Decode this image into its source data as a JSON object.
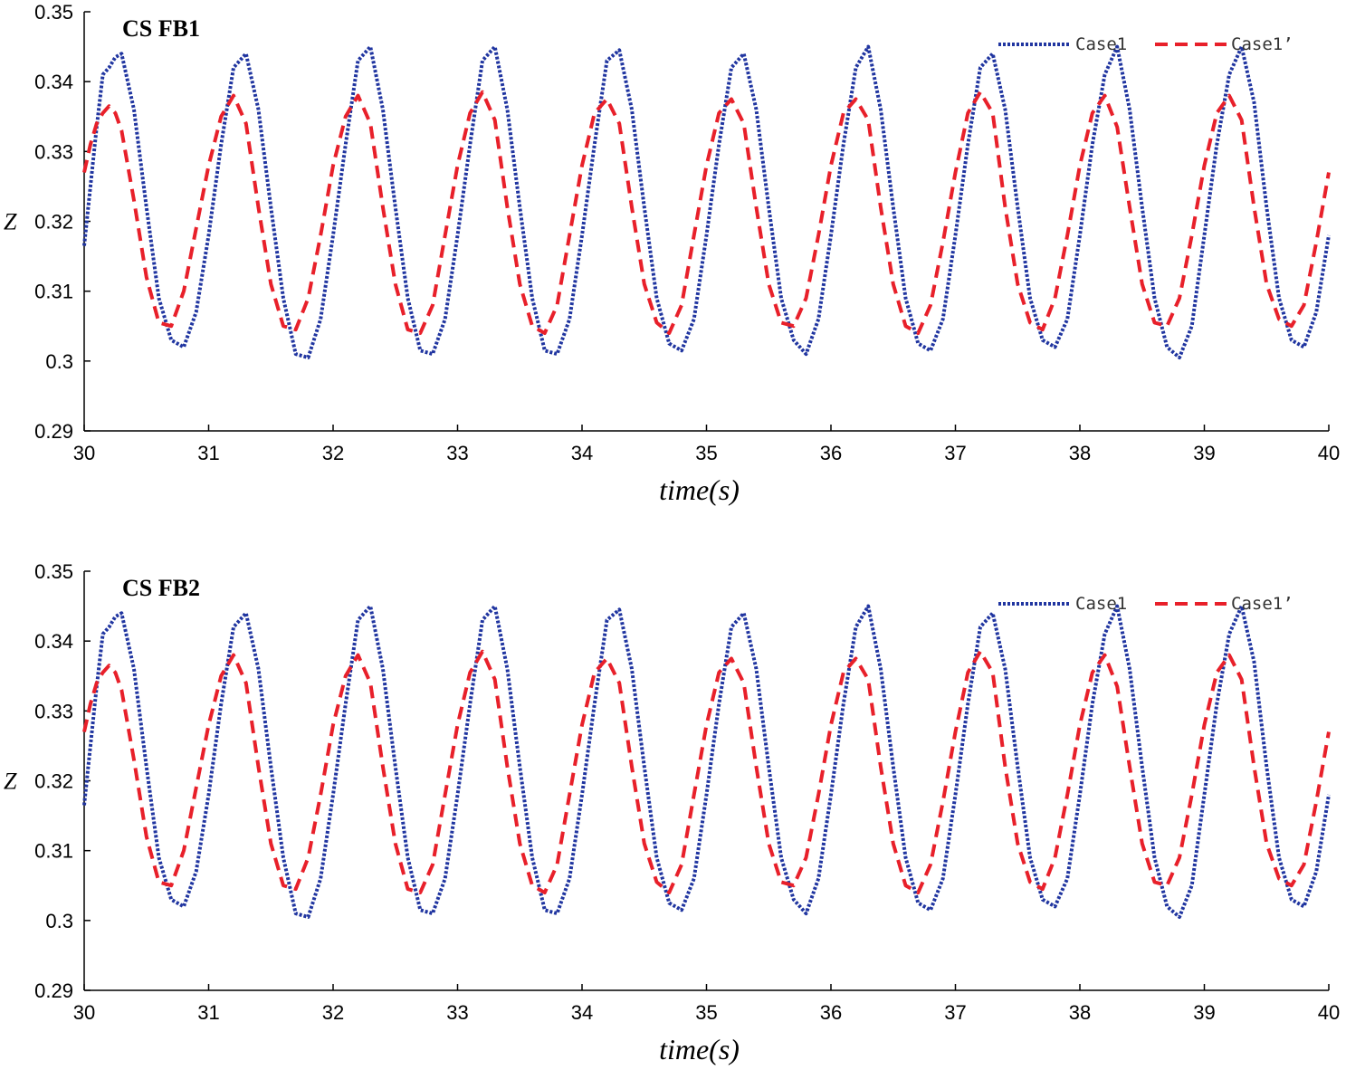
{
  "chart_data": [
    {
      "type": "line",
      "title": "CS FB1",
      "xlabel": "time(s)",
      "ylabel": "Z",
      "xlim": [
        30,
        40
      ],
      "ylim": [
        0.29,
        0.35
      ],
      "xticks": [
        "30",
        "31",
        "32",
        "33",
        "34",
        "35",
        "36",
        "37",
        "38",
        "39",
        "40"
      ],
      "yticks": [
        "0.29",
        "0.3",
        "0.31",
        "0.32",
        "0.33",
        "0.34",
        "0.35"
      ],
      "legend_position": "top-right",
      "series": [
        {
          "name": "Case1",
          "style": "dotted",
          "color": "#2035a0",
          "x": [
            30,
            30.05,
            30.1,
            30.15,
            30.2,
            30.25,
            30.3,
            30.4,
            30.5,
            30.6,
            30.7,
            30.8,
            30.9,
            31,
            31.1,
            31.2,
            31.3,
            31.4,
            31.5,
            31.6,
            31.7,
            31.8,
            31.9,
            32,
            32.1,
            32.2,
            32.3,
            32.4,
            32.5,
            32.6,
            32.7,
            32.8,
            32.9,
            33,
            33.1,
            33.2,
            33.3,
            33.4,
            33.5,
            33.6,
            33.7,
            33.8,
            33.9,
            34,
            34.1,
            34.2,
            34.3,
            34.4,
            34.5,
            34.6,
            34.7,
            34.8,
            34.9,
            35,
            35.1,
            35.2,
            35.3,
            35.4,
            35.5,
            35.6,
            35.7,
            35.8,
            35.9,
            36,
            36.1,
            36.2,
            36.3,
            36.4,
            36.5,
            36.6,
            36.7,
            36.8,
            36.9,
            37,
            37.1,
            37.2,
            37.3,
            37.4,
            37.5,
            37.6,
            37.7,
            37.8,
            37.9,
            38,
            38.1,
            38.2,
            38.3,
            38.4,
            38.5,
            38.6,
            38.7,
            38.8,
            38.9,
            39,
            39.1,
            39.2,
            39.3,
            39.4,
            39.5,
            39.6,
            39.7,
            39.8,
            39.9,
            40
          ],
          "y": [
            0.3165,
            0.325,
            0.3335,
            0.341,
            0.342,
            0.3435,
            0.344,
            0.336,
            0.322,
            0.309,
            0.303,
            0.302,
            0.307,
            0.318,
            0.331,
            0.342,
            0.344,
            0.336,
            0.322,
            0.309,
            0.301,
            0.3005,
            0.306,
            0.318,
            0.331,
            0.343,
            0.345,
            0.336,
            0.322,
            0.309,
            0.3015,
            0.301,
            0.306,
            0.318,
            0.331,
            0.343,
            0.345,
            0.336,
            0.322,
            0.309,
            0.3015,
            0.301,
            0.306,
            0.318,
            0.331,
            0.343,
            0.3445,
            0.336,
            0.322,
            0.309,
            0.3025,
            0.3015,
            0.306,
            0.318,
            0.331,
            0.342,
            0.344,
            0.336,
            0.322,
            0.309,
            0.303,
            0.301,
            0.306,
            0.318,
            0.331,
            0.342,
            0.345,
            0.336,
            0.322,
            0.309,
            0.3025,
            0.3015,
            0.306,
            0.318,
            0.331,
            0.342,
            0.344,
            0.336,
            0.322,
            0.309,
            0.303,
            0.302,
            0.306,
            0.318,
            0.331,
            0.341,
            0.345,
            0.336,
            0.322,
            0.309,
            0.302,
            0.3005,
            0.305,
            0.318,
            0.331,
            0.341,
            0.345,
            0.337,
            0.322,
            0.309,
            0.303,
            0.302,
            0.307,
            0.318
          ]
        },
        {
          "name": "Case1’",
          "style": "dashed",
          "color": "#e8202a",
          "x": [
            30,
            30.05,
            30.1,
            30.15,
            30.2,
            30.25,
            30.3,
            30.4,
            30.5,
            30.6,
            30.7,
            30.8,
            30.9,
            31,
            31.1,
            31.2,
            31.3,
            31.4,
            31.5,
            31.6,
            31.7,
            31.8,
            31.9,
            32,
            32.1,
            32.2,
            32.3,
            32.4,
            32.5,
            32.6,
            32.7,
            32.8,
            32.9,
            33,
            33.1,
            33.2,
            33.3,
            33.4,
            33.5,
            33.6,
            33.7,
            33.8,
            33.9,
            34,
            34.1,
            34.2,
            34.3,
            34.4,
            34.5,
            34.6,
            34.7,
            34.8,
            34.9,
            35,
            35.1,
            35.2,
            35.3,
            35.4,
            35.5,
            35.6,
            35.7,
            35.8,
            35.9,
            36,
            36.1,
            36.2,
            36.3,
            36.4,
            36.5,
            36.6,
            36.7,
            36.8,
            36.9,
            37,
            37.1,
            37.2,
            37.3,
            37.4,
            37.5,
            37.6,
            37.7,
            37.8,
            37.9,
            38,
            38.1,
            38.2,
            38.3,
            38.4,
            38.5,
            38.6,
            38.7,
            38.8,
            38.9,
            39,
            39.1,
            39.2,
            39.3,
            39.4,
            39.5,
            39.6,
            39.7,
            39.8,
            39.9,
            40
          ],
          "y": [
            0.327,
            0.331,
            0.334,
            0.3355,
            0.3365,
            0.3355,
            0.333,
            0.323,
            0.312,
            0.3055,
            0.305,
            0.31,
            0.319,
            0.328,
            0.335,
            0.338,
            0.334,
            0.322,
            0.311,
            0.305,
            0.3045,
            0.309,
            0.318,
            0.328,
            0.335,
            0.338,
            0.334,
            0.322,
            0.311,
            0.3045,
            0.304,
            0.308,
            0.318,
            0.328,
            0.3355,
            0.3385,
            0.3345,
            0.322,
            0.311,
            0.305,
            0.304,
            0.308,
            0.318,
            0.328,
            0.3355,
            0.3375,
            0.334,
            0.322,
            0.311,
            0.3055,
            0.304,
            0.308,
            0.318,
            0.328,
            0.3355,
            0.3375,
            0.334,
            0.322,
            0.311,
            0.3055,
            0.305,
            0.309,
            0.318,
            0.328,
            0.3355,
            0.3375,
            0.3345,
            0.322,
            0.311,
            0.305,
            0.304,
            0.308,
            0.317,
            0.327,
            0.3355,
            0.3385,
            0.3355,
            0.322,
            0.311,
            0.3055,
            0.3045,
            0.309,
            0.318,
            0.328,
            0.3355,
            0.338,
            0.3335,
            0.322,
            0.311,
            0.3055,
            0.305,
            0.309,
            0.318,
            0.328,
            0.3355,
            0.338,
            0.3345,
            0.322,
            0.311,
            0.306,
            0.305,
            0.308,
            0.317,
            0.327
          ]
        }
      ]
    },
    {
      "type": "line",
      "title": "CS FB2",
      "xlabel": "time(s)",
      "ylabel": "Z",
      "xlim": [
        30,
        40
      ],
      "ylim": [
        0.29,
        0.35
      ],
      "xticks": [
        "30",
        "31",
        "32",
        "33",
        "34",
        "35",
        "36",
        "37",
        "38",
        "39",
        "40"
      ],
      "yticks": [
        "0.29",
        "0.3",
        "0.31",
        "0.32",
        "0.33",
        "0.34",
        "0.35"
      ],
      "legend_position": "top-right",
      "series": [
        {
          "name": "Case1",
          "style": "dotted",
          "color": "#2035a0",
          "x": [
            30,
            30.05,
            30.1,
            30.15,
            30.2,
            30.25,
            30.3,
            30.4,
            30.5,
            30.6,
            30.7,
            30.8,
            30.9,
            31,
            31.1,
            31.2,
            31.3,
            31.4,
            31.5,
            31.6,
            31.7,
            31.8,
            31.9,
            32,
            32.1,
            32.2,
            32.3,
            32.4,
            32.5,
            32.6,
            32.7,
            32.8,
            32.9,
            33,
            33.1,
            33.2,
            33.3,
            33.4,
            33.5,
            33.6,
            33.7,
            33.8,
            33.9,
            34,
            34.1,
            34.2,
            34.3,
            34.4,
            34.5,
            34.6,
            34.7,
            34.8,
            34.9,
            35,
            35.1,
            35.2,
            35.3,
            35.4,
            35.5,
            35.6,
            35.7,
            35.8,
            35.9,
            36,
            36.1,
            36.2,
            36.3,
            36.4,
            36.5,
            36.6,
            36.7,
            36.8,
            36.9,
            37,
            37.1,
            37.2,
            37.3,
            37.4,
            37.5,
            37.6,
            37.7,
            37.8,
            37.9,
            38,
            38.1,
            38.2,
            38.3,
            38.4,
            38.5,
            38.6,
            38.7,
            38.8,
            38.9,
            39,
            39.1,
            39.2,
            39.3,
            39.4,
            39.5,
            39.6,
            39.7,
            39.8,
            39.9,
            40
          ],
          "y": [
            0.3165,
            0.325,
            0.3335,
            0.341,
            0.342,
            0.3435,
            0.344,
            0.336,
            0.322,
            0.309,
            0.303,
            0.302,
            0.307,
            0.318,
            0.331,
            0.342,
            0.344,
            0.336,
            0.322,
            0.309,
            0.301,
            0.3005,
            0.306,
            0.318,
            0.331,
            0.343,
            0.345,
            0.336,
            0.322,
            0.309,
            0.3015,
            0.301,
            0.306,
            0.318,
            0.331,
            0.343,
            0.345,
            0.336,
            0.322,
            0.309,
            0.3015,
            0.301,
            0.306,
            0.318,
            0.331,
            0.343,
            0.3445,
            0.336,
            0.322,
            0.309,
            0.3025,
            0.3015,
            0.306,
            0.318,
            0.331,
            0.342,
            0.344,
            0.336,
            0.322,
            0.309,
            0.303,
            0.301,
            0.306,
            0.318,
            0.331,
            0.342,
            0.345,
            0.336,
            0.322,
            0.309,
            0.3025,
            0.3015,
            0.306,
            0.318,
            0.331,
            0.342,
            0.344,
            0.336,
            0.322,
            0.309,
            0.303,
            0.302,
            0.306,
            0.318,
            0.331,
            0.341,
            0.345,
            0.336,
            0.322,
            0.309,
            0.302,
            0.3005,
            0.305,
            0.318,
            0.331,
            0.341,
            0.345,
            0.337,
            0.322,
            0.309,
            0.303,
            0.302,
            0.307,
            0.318
          ]
        },
        {
          "name": "Case1’",
          "style": "dashed",
          "color": "#e8202a",
          "x": [
            30,
            30.05,
            30.1,
            30.15,
            30.2,
            30.25,
            30.3,
            30.4,
            30.5,
            30.6,
            30.7,
            30.8,
            30.9,
            31,
            31.1,
            31.2,
            31.3,
            31.4,
            31.5,
            31.6,
            31.7,
            31.8,
            31.9,
            32,
            32.1,
            32.2,
            32.3,
            32.4,
            32.5,
            32.6,
            32.7,
            32.8,
            32.9,
            33,
            33.1,
            33.2,
            33.3,
            33.4,
            33.5,
            33.6,
            33.7,
            33.8,
            33.9,
            34,
            34.1,
            34.2,
            34.3,
            34.4,
            34.5,
            34.6,
            34.7,
            34.8,
            34.9,
            35,
            35.1,
            35.2,
            35.3,
            35.4,
            35.5,
            35.6,
            35.7,
            35.8,
            35.9,
            36,
            36.1,
            36.2,
            36.3,
            36.4,
            36.5,
            36.6,
            36.7,
            36.8,
            36.9,
            37,
            37.1,
            37.2,
            37.3,
            37.4,
            37.5,
            37.6,
            37.7,
            37.8,
            37.9,
            38,
            38.1,
            38.2,
            38.3,
            38.4,
            38.5,
            38.6,
            38.7,
            38.8,
            38.9,
            39,
            39.1,
            39.2,
            39.3,
            39.4,
            39.5,
            39.6,
            39.7,
            39.8,
            39.9,
            40
          ],
          "y": [
            0.327,
            0.331,
            0.334,
            0.3355,
            0.3365,
            0.3355,
            0.333,
            0.323,
            0.312,
            0.3055,
            0.305,
            0.31,
            0.319,
            0.328,
            0.335,
            0.338,
            0.334,
            0.322,
            0.311,
            0.305,
            0.3045,
            0.309,
            0.318,
            0.328,
            0.335,
            0.338,
            0.334,
            0.322,
            0.311,
            0.3045,
            0.304,
            0.308,
            0.318,
            0.328,
            0.3355,
            0.3385,
            0.3345,
            0.322,
            0.311,
            0.305,
            0.304,
            0.308,
            0.318,
            0.328,
            0.3355,
            0.3375,
            0.334,
            0.322,
            0.311,
            0.3055,
            0.304,
            0.308,
            0.318,
            0.328,
            0.3355,
            0.3375,
            0.334,
            0.322,
            0.311,
            0.3055,
            0.305,
            0.309,
            0.318,
            0.328,
            0.3355,
            0.3375,
            0.3345,
            0.322,
            0.311,
            0.305,
            0.304,
            0.308,
            0.317,
            0.327,
            0.3355,
            0.3385,
            0.3355,
            0.322,
            0.311,
            0.3055,
            0.3045,
            0.309,
            0.318,
            0.328,
            0.3355,
            0.338,
            0.3335,
            0.322,
            0.311,
            0.3055,
            0.305,
            0.309,
            0.318,
            0.328,
            0.3355,
            0.338,
            0.3345,
            0.322,
            0.311,
            0.306,
            0.305,
            0.308,
            0.317,
            0.327
          ]
        }
      ]
    }
  ]
}
